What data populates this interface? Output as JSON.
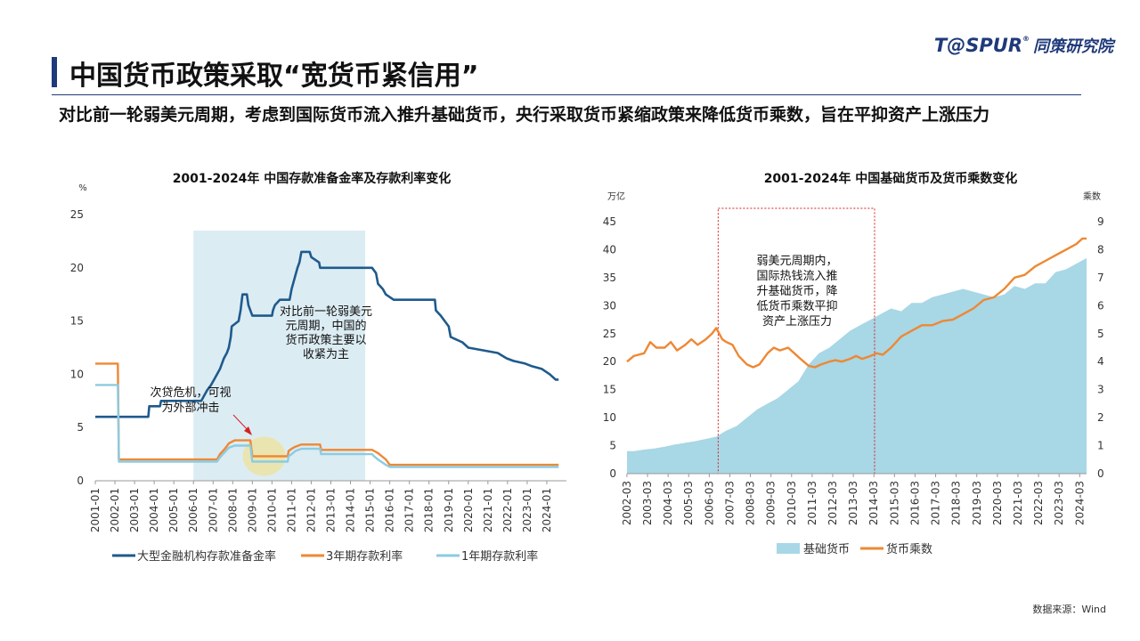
{
  "brand": {
    "name": "T@SPUR",
    "reg": "®",
    "cn": "同策研究院"
  },
  "page": {
    "title": "中国货币政策采取“宽货币紧信用”",
    "subtitle": "对比前一轮弱美元周期，考虑到国际货币流入推升基础货币，央行采取货币紧缩政策来降低货币乘数，旨在平抑资产上涨压力",
    "source": "数据来源：Wind"
  },
  "colors": {
    "accent": "#1f3a7a",
    "navy_line": "#1f5a8c",
    "orange_line": "#ee8833",
    "light_blue_line": "#8ccbe0",
    "area": "#a8d7e6",
    "shade": "#dcecf3"
  },
  "chart_data": [
    {
      "type": "line",
      "title": "2001-2024年 中国存款准备金率及存款利率变化",
      "ylabel": "%",
      "ylim": [
        0,
        25
      ],
      "yticks": [
        0,
        5,
        10,
        15,
        20,
        25
      ],
      "xlim": [
        2001.0,
        2025.0
      ],
      "xticks": [
        "2001-01",
        "2002-01",
        "2003-01",
        "2004-01",
        "2005-01",
        "2006-01",
        "2007-01",
        "2008-01",
        "2009-01",
        "2010-01",
        "2011-01",
        "2012-01",
        "2013-01",
        "2014-01",
        "2015-01",
        "2016-01",
        "2017-01",
        "2018-01",
        "2019-01",
        "2020-01",
        "2021-01",
        "2022-01",
        "2023-01",
        "2024-01"
      ],
      "shaded_range": [
        2006.0,
        2014.75
      ],
      "series": [
        {
          "name": "大型金融机构存款准备金率",
          "color": "#1f5a8c",
          "points": [
            [
              2001.0,
              6
            ],
            [
              2003.7,
              6
            ],
            [
              2003.75,
              7
            ],
            [
              2004.3,
              7
            ],
            [
              2004.35,
              7.5
            ],
            [
              2006.4,
              7.5
            ],
            [
              2006.55,
              8
            ],
            [
              2006.7,
              8.5
            ],
            [
              2006.9,
              9
            ],
            [
              2007.05,
              9.5
            ],
            [
              2007.2,
              10
            ],
            [
              2007.35,
              10.5
            ],
            [
              2007.45,
              11
            ],
            [
              2007.55,
              11.5
            ],
            [
              2007.7,
              12
            ],
            [
              2007.8,
              12.5
            ],
            [
              2007.9,
              13.5
            ],
            [
              2007.95,
              14.5
            ],
            [
              2008.3,
              15
            ],
            [
              2008.4,
              16
            ],
            [
              2008.5,
              17.5
            ],
            [
              2008.72,
              17.5
            ],
            [
              2008.8,
              16.5
            ],
            [
              2009.0,
              15.5
            ],
            [
              2010.0,
              15.5
            ],
            [
              2010.05,
              16
            ],
            [
              2010.15,
              16.5
            ],
            [
              2010.4,
              17
            ],
            [
              2010.9,
              17
            ],
            [
              2011.0,
              18
            ],
            [
              2011.15,
              19
            ],
            [
              2011.3,
              20
            ],
            [
              2011.4,
              20.5
            ],
            [
              2011.45,
              21
            ],
            [
              2011.5,
              21.5
            ],
            [
              2011.92,
              21.5
            ],
            [
              2012.0,
              21
            ],
            [
              2012.4,
              20.5
            ],
            [
              2012.45,
              20
            ],
            [
              2015.1,
              20
            ],
            [
              2015.3,
              19.5
            ],
            [
              2015.4,
              18.5
            ],
            [
              2015.65,
              18
            ],
            [
              2015.8,
              17.5
            ],
            [
              2016.2,
              17
            ],
            [
              2018.3,
              17
            ],
            [
              2018.35,
              16
            ],
            [
              2018.6,
              15.5
            ],
            [
              2019.0,
              14.5
            ],
            [
              2019.1,
              13.5
            ],
            [
              2019.7,
              13
            ],
            [
              2020.0,
              12.5
            ],
            [
              2021.5,
              12
            ],
            [
              2021.95,
              11.5
            ],
            [
              2022.3,
              11.25
            ],
            [
              2022.9,
              11
            ],
            [
              2023.25,
              10.75
            ],
            [
              2023.75,
              10.5
            ],
            [
              2024.15,
              10
            ],
            [
              2024.45,
              9.5
            ],
            [
              2024.6,
              9.5
            ]
          ]
        },
        {
          "name": "3年期存款利率",
          "color": "#ee8833",
          "points": [
            [
              2001.0,
              11
            ],
            [
              2002.15,
              11
            ],
            [
              2002.2,
              2
            ],
            [
              2007.2,
              2
            ],
            [
              2007.35,
              2.5
            ],
            [
              2007.6,
              3
            ],
            [
              2007.8,
              3.5
            ],
            [
              2008.1,
              3.8
            ],
            [
              2008.9,
              3.8
            ],
            [
              2009.0,
              2.3
            ],
            [
              2010.8,
              2.3
            ],
            [
              2010.85,
              2.8
            ],
            [
              2011.0,
              3
            ],
            [
              2011.2,
              3.2
            ],
            [
              2011.5,
              3.4
            ],
            [
              2012.45,
              3.4
            ],
            [
              2012.5,
              2.9
            ],
            [
              2015.1,
              2.9
            ],
            [
              2015.2,
              2.8
            ],
            [
              2015.4,
              2.6
            ],
            [
              2015.6,
              2.3
            ],
            [
              2015.8,
              2.0
            ],
            [
              2016.0,
              1.5
            ],
            [
              2024.6,
              1.5
            ]
          ]
        },
        {
          "name": "1年期存款利率",
          "color": "#8ccbe0",
          "points": [
            [
              2001.0,
              9
            ],
            [
              2002.15,
              9
            ],
            [
              2002.2,
              1.8
            ],
            [
              2007.2,
              1.8
            ],
            [
              2007.35,
              2.2
            ],
            [
              2007.6,
              2.7
            ],
            [
              2007.8,
              3.1
            ],
            [
              2008.1,
              3.3
            ],
            [
              2008.9,
              3.3
            ],
            [
              2009.0,
              1.8
            ],
            [
              2010.8,
              1.8
            ],
            [
              2010.85,
              2.3
            ],
            [
              2011.0,
              2.5
            ],
            [
              2011.2,
              2.8
            ],
            [
              2011.5,
              3.0
            ],
            [
              2012.45,
              3.0
            ],
            [
              2012.5,
              2.5
            ],
            [
              2015.1,
              2.5
            ],
            [
              2015.2,
              2.3
            ],
            [
              2015.4,
              2.0
            ],
            [
              2015.6,
              1.75
            ],
            [
              2015.8,
              1.5
            ],
            [
              2016.0,
              1.3
            ],
            [
              2024.6,
              1.3
            ]
          ]
        }
      ],
      "annotations": [
        {
          "lines": [
            "对比前一轮弱美元",
            "元周期，中国的",
            "货币政策主要以",
            "收紧为主"
          ]
        },
        {
          "lines": [
            "次贷危机，可视",
            "为外部冲击"
          ]
        }
      ]
    },
    {
      "type": "area",
      "title": "2001-2024年 中国基础货币及货币乘数变化",
      "y_left_label": "万亿",
      "y_right_label": "乘数",
      "ylim_left": [
        0,
        45
      ],
      "ylim_right": [
        0,
        9
      ],
      "yticks_left": [
        0,
        5,
        10,
        15,
        20,
        25,
        30,
        35,
        40,
        45
      ],
      "yticks_right": [
        0,
        1,
        2,
        3,
        4,
        5,
        6,
        7,
        8,
        9
      ],
      "xlim": [
        2002.17,
        2024.5
      ],
      "xticks": [
        "2002-03",
        "2003-03",
        "2004-03",
        "2005-03",
        "2006-03",
        "2007-03",
        "2008-03",
        "2009-03",
        "2010-03",
        "2011-03",
        "2012-03",
        "2013-03",
        "2014-03",
        "2015-03",
        "2016-03",
        "2017-03",
        "2018-03",
        "2019-03",
        "2020-03",
        "2021-03",
        "2022-03",
        "2023-03",
        "2024-03"
      ],
      "highlight_range": [
        2006.6,
        2014.2
      ],
      "series": [
        {
          "name": "基础货币",
          "axis": "left",
          "color": "#a8d7e6",
          "points": [
            [
              2002.17,
              4.0
            ],
            [
              2002.5,
              4.0
            ],
            [
              2003.0,
              4.3
            ],
            [
              2003.5,
              4.5
            ],
            [
              2004.0,
              4.8
            ],
            [
              2004.5,
              5.2
            ],
            [
              2005.0,
              5.5
            ],
            [
              2005.5,
              5.8
            ],
            [
              2006.0,
              6.2
            ],
            [
              2006.5,
              6.6
            ],
            [
              2007.0,
              7.7
            ],
            [
              2007.5,
              8.5
            ],
            [
              2008.0,
              10.0
            ],
            [
              2008.5,
              11.5
            ],
            [
              2009.0,
              12.5
            ],
            [
              2009.5,
              13.5
            ],
            [
              2010.0,
              15.0
            ],
            [
              2010.5,
              16.5
            ],
            [
              2011.0,
              19.5
            ],
            [
              2011.5,
              21.5
            ],
            [
              2012.0,
              22.5
            ],
            [
              2012.5,
              24.0
            ],
            [
              2013.0,
              25.5
            ],
            [
              2013.5,
              26.5
            ],
            [
              2014.0,
              27.5
            ],
            [
              2014.5,
              28.5
            ],
            [
              2015.0,
              29.5
            ],
            [
              2015.5,
              29.0
            ],
            [
              2016.0,
              30.5
            ],
            [
              2016.5,
              30.5
            ],
            [
              2017.0,
              31.5
            ],
            [
              2017.5,
              32.0
            ],
            [
              2018.0,
              32.5
            ],
            [
              2018.5,
              33.0
            ],
            [
              2019.0,
              32.5
            ],
            [
              2019.5,
              32.0
            ],
            [
              2020.0,
              31.5
            ],
            [
              2020.5,
              32.0
            ],
            [
              2021.0,
              33.5
            ],
            [
              2021.5,
              33.0
            ],
            [
              2022.0,
              34.0
            ],
            [
              2022.5,
              34.0
            ],
            [
              2023.0,
              36.0
            ],
            [
              2023.5,
              36.5
            ],
            [
              2024.0,
              37.5
            ],
            [
              2024.5,
              38.5
            ]
          ]
        },
        {
          "name": "货币乘数",
          "axis": "right",
          "color": "#ee8833",
          "points": [
            [
              2002.17,
              4.0
            ],
            [
              2002.5,
              4.2
            ],
            [
              2003.0,
              4.3
            ],
            [
              2003.3,
              4.7
            ],
            [
              2003.6,
              4.5
            ],
            [
              2004.0,
              4.5
            ],
            [
              2004.3,
              4.7
            ],
            [
              2004.6,
              4.4
            ],
            [
              2005.0,
              4.6
            ],
            [
              2005.3,
              4.8
            ],
            [
              2005.6,
              4.6
            ],
            [
              2006.0,
              4.8
            ],
            [
              2006.3,
              5.0
            ],
            [
              2006.5,
              5.2
            ],
            [
              2006.8,
              4.8
            ],
            [
              2007.0,
              4.7
            ],
            [
              2007.3,
              4.6
            ],
            [
              2007.6,
              4.2
            ],
            [
              2008.0,
              3.9
            ],
            [
              2008.3,
              3.8
            ],
            [
              2008.6,
              3.9
            ],
            [
              2009.0,
              4.3
            ],
            [
              2009.3,
              4.5
            ],
            [
              2009.6,
              4.4
            ],
            [
              2010.0,
              4.5
            ],
            [
              2010.3,
              4.3
            ],
            [
              2010.6,
              4.1
            ],
            [
              2011.0,
              3.85
            ],
            [
              2011.3,
              3.8
            ],
            [
              2011.6,
              3.9
            ],
            [
              2012.0,
              4.0
            ],
            [
              2012.3,
              4.05
            ],
            [
              2012.6,
              4.0
            ],
            [
              2013.0,
              4.1
            ],
            [
              2013.3,
              4.2
            ],
            [
              2013.6,
              4.1
            ],
            [
              2014.0,
              4.2
            ],
            [
              2014.3,
              4.3
            ],
            [
              2014.6,
              4.25
            ],
            [
              2015.0,
              4.5
            ],
            [
              2015.5,
              4.9
            ],
            [
              2016.0,
              5.1
            ],
            [
              2016.5,
              5.3
            ],
            [
              2017.0,
              5.3
            ],
            [
              2017.5,
              5.45
            ],
            [
              2018.0,
              5.5
            ],
            [
              2018.5,
              5.7
            ],
            [
              2019.0,
              5.9
            ],
            [
              2019.5,
              6.2
            ],
            [
              2020.0,
              6.3
            ],
            [
              2020.5,
              6.6
            ],
            [
              2021.0,
              7.0
            ],
            [
              2021.5,
              7.1
            ],
            [
              2022.0,
              7.4
            ],
            [
              2022.5,
              7.6
            ],
            [
              2023.0,
              7.8
            ],
            [
              2023.5,
              8.0
            ],
            [
              2024.0,
              8.2
            ],
            [
              2024.3,
              8.4
            ],
            [
              2024.5,
              8.4
            ]
          ]
        }
      ],
      "annotations": [
        {
          "lines": [
            "弱美元周期内，",
            "国际热钱流入推",
            "升基础货币，降",
            "低货币乘数平抑",
            "资产上涨压力"
          ]
        }
      ]
    }
  ]
}
